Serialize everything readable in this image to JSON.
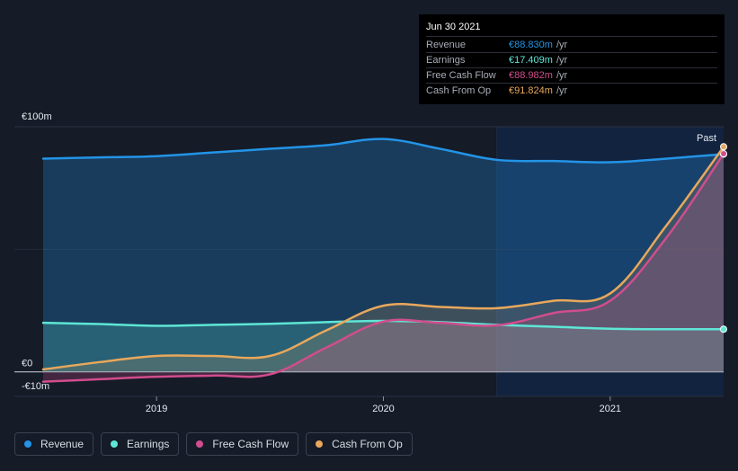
{
  "chart_data": {
    "type": "area",
    "y_axis": {
      "top_label": "€100m",
      "zero_label": "€0",
      "bottom_label": "-€10m",
      "ylim": [
        -10,
        100
      ]
    },
    "x_ticks": [
      {
        "label": "2019",
        "x": 2019.0
      },
      {
        "label": "2020",
        "x": 2020.0
      },
      {
        "label": "2021",
        "x": 2021.0
      }
    ],
    "xlim": [
      2018.5,
      2021.5
    ],
    "past_start": 2020.5,
    "past_label": "Past",
    "series": [
      {
        "name": "Revenue",
        "color": "#2394e6",
        "x": [
          2018.5,
          2018.75,
          2019.0,
          2019.25,
          2019.5,
          2019.75,
          2020.0,
          2020.25,
          2020.5,
          2020.75,
          2021.0,
          2021.25,
          2021.5
        ],
        "values": [
          87.0,
          87.5,
          88.0,
          89.5,
          91.0,
          92.5,
          95.0,
          91.0,
          86.5,
          86.0,
          85.5,
          87.0,
          88.83
        ]
      },
      {
        "name": "Earnings",
        "color": "#5ee6d6",
        "x": [
          2018.5,
          2018.75,
          2019.0,
          2019.25,
          2019.5,
          2019.75,
          2020.0,
          2020.25,
          2020.5,
          2020.75,
          2021.0,
          2021.25,
          2021.5
        ],
        "values": [
          20.0,
          19.5,
          18.8,
          19.2,
          19.6,
          20.3,
          20.8,
          20.3,
          19.2,
          18.4,
          17.6,
          17.4,
          17.409
        ]
      },
      {
        "name": "Free Cash Flow",
        "color": "#d14d8d",
        "x": [
          2018.5,
          2018.75,
          2019.0,
          2019.25,
          2019.5,
          2019.75,
          2020.0,
          2020.25,
          2020.5,
          2020.75,
          2021.0,
          2021.25,
          2021.5
        ],
        "values": [
          -4.0,
          -3.0,
          -2.0,
          -1.5,
          -1.0,
          10.0,
          20.5,
          20.0,
          19.0,
          24.0,
          29.0,
          55.0,
          88.982
        ]
      },
      {
        "name": "Cash From Op",
        "color": "#e8a85c",
        "x": [
          2018.5,
          2018.75,
          2019.0,
          2019.25,
          2019.5,
          2019.75,
          2020.0,
          2020.25,
          2020.5,
          2020.75,
          2021.0,
          2021.25,
          2021.5
        ],
        "values": [
          1.0,
          4.0,
          6.5,
          6.5,
          6.5,
          17.0,
          27.0,
          26.5,
          26.0,
          29.0,
          32.0,
          60.0,
          91.824
        ]
      }
    ]
  },
  "tooltip": {
    "date": "Jun 30 2021",
    "rows": [
      {
        "label": "Revenue",
        "value": "€88.830m",
        "unit": "/yr",
        "color": "#2394e6"
      },
      {
        "label": "Earnings",
        "value": "€17.409m",
        "unit": "/yr",
        "color": "#5ee6d6"
      },
      {
        "label": "Free Cash Flow",
        "value": "€88.982m",
        "unit": "/yr",
        "color": "#d14d8d"
      },
      {
        "label": "Cash From Op",
        "value": "€91.824m",
        "unit": "/yr",
        "color": "#e8a85c"
      }
    ]
  },
  "legend": [
    {
      "label": "Revenue",
      "color": "#2394e6"
    },
    {
      "label": "Earnings",
      "color": "#5ee6d6"
    },
    {
      "label": "Free Cash Flow",
      "color": "#d14d8d"
    },
    {
      "label": "Cash From Op",
      "color": "#e8a85c"
    }
  ]
}
